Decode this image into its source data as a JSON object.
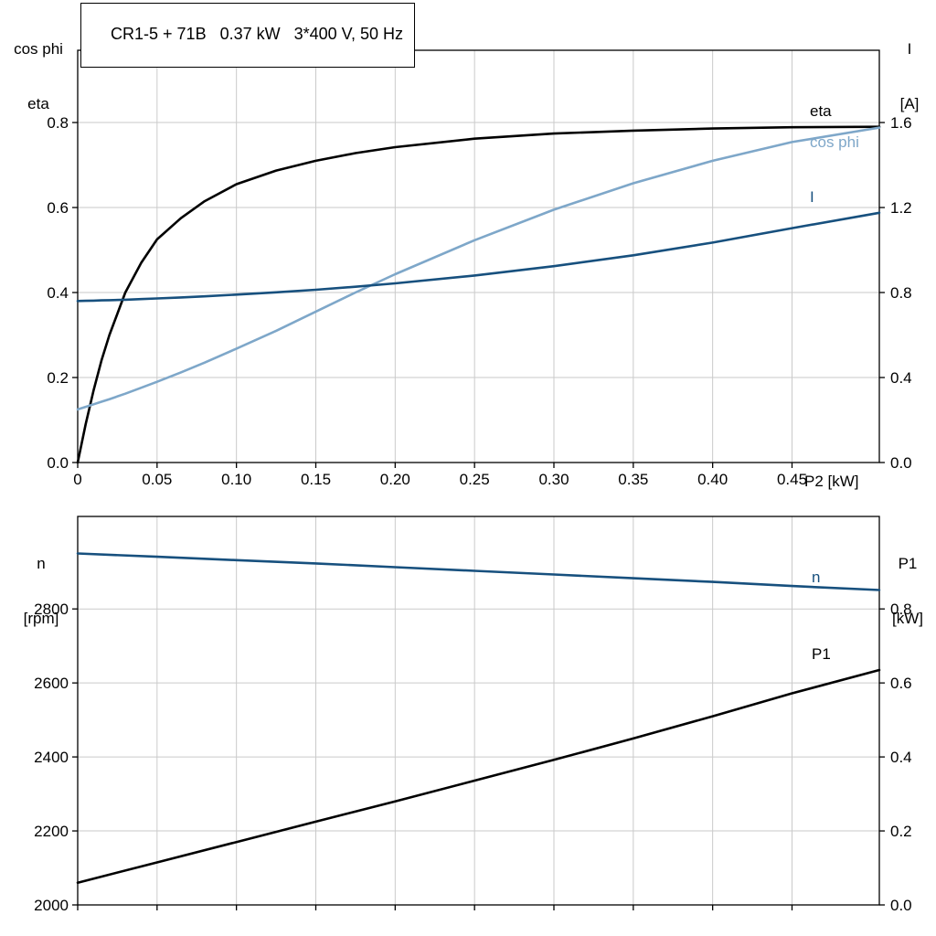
{
  "header": {
    "title": "CR1-5 + 71B   0.37 kW   3*400 V, 50 Hz"
  },
  "axes": {
    "top_left_line1": "cos phi",
    "top_left_line2": "eta",
    "top_right_line1": "I",
    "top_right_line2": "[A]",
    "top_xlabel": "P2 [kW]",
    "bottom_left_line1": "n",
    "bottom_left_line2": "[rpm]",
    "bottom_right_line1": "P1",
    "bottom_right_line2": "[kW]"
  },
  "curve_labels": {
    "eta": "eta",
    "cos_phi": "cos phi",
    "current": "I",
    "speed": "n",
    "power": "P1"
  },
  "colors": {
    "black": "#000000",
    "light_blue": "#7ea7c9",
    "dark_blue": "#17507e",
    "grid": "#cacaca"
  },
  "chart_data": [
    {
      "id": "top",
      "type": "line",
      "title": "CR1-5 + 71B   0.37 kW   3*400 V, 50 Hz",
      "xlabel": "P2 [kW]",
      "ylabel_left": "cos phi / eta",
      "ylabel_right": "I [A]",
      "grid": true,
      "xlim": [
        0,
        0.505
      ],
      "xticks": [
        0,
        0.05,
        0.1,
        0.15,
        0.2,
        0.25,
        0.3,
        0.35,
        0.4,
        0.45
      ],
      "xtick_labels": [
        "0",
        "0.05",
        "0.10",
        "0.15",
        "0.20",
        "0.25",
        "0.30",
        "0.35",
        "0.40",
        "0.45"
      ],
      "ylim_left": [
        0,
        0.97
      ],
      "yticks_left": [
        0,
        0.2,
        0.4,
        0.6,
        0.8
      ],
      "ytick_labels_left": [
        "0.0",
        "0.2",
        "0.4",
        "0.6",
        "0.8"
      ],
      "ylim_right": [
        0,
        1.94
      ],
      "yticks_right": [
        0,
        0.4,
        0.8,
        1.2,
        1.6
      ],
      "ytick_labels_right": [
        "0.0",
        "0.4",
        "0.8",
        "1.2",
        "1.6"
      ],
      "x": [
        0,
        0.005,
        0.01,
        0.015,
        0.02,
        0.03,
        0.04,
        0.05,
        0.065,
        0.08,
        0.1,
        0.125,
        0.15,
        0.175,
        0.2,
        0.25,
        0.3,
        0.35,
        0.4,
        0.45,
        0.505
      ],
      "series": [
        {
          "name": "eta",
          "axis": "left",
          "color": "#000000",
          "values": [
            0,
            0.09,
            0.17,
            0.24,
            0.3,
            0.4,
            0.47,
            0.525,
            0.575,
            0.615,
            0.655,
            0.687,
            0.71,
            0.728,
            0.742,
            0.762,
            0.774,
            0.781,
            0.786,
            0.789,
            0.79
          ]
        },
        {
          "name": "cos phi",
          "axis": "left",
          "color": "#7ea7c9",
          "values": [
            0.125,
            0.131,
            0.137,
            0.143,
            0.149,
            0.162,
            0.176,
            0.19,
            0.212,
            0.235,
            0.268,
            0.31,
            0.355,
            0.4,
            0.443,
            0.523,
            0.595,
            0.657,
            0.71,
            0.754,
            0.788
          ]
        },
        {
          "name": "I",
          "axis": "right",
          "color": "#17507e",
          "values": [
            0.76,
            0.761,
            0.762,
            0.763,
            0.764,
            0.766,
            0.769,
            0.772,
            0.777,
            0.782,
            0.79,
            0.801,
            0.813,
            0.827,
            0.843,
            0.88,
            0.924,
            0.975,
            1.035,
            1.103,
            1.175
          ]
        }
      ]
    },
    {
      "id": "bottom",
      "type": "line",
      "title": "",
      "xlabel": "",
      "ylabel_left": "n [rpm]",
      "ylabel_right": "P1 [kW]",
      "grid": true,
      "xlim": [
        0,
        0.505
      ],
      "xticks": [
        0,
        0.05,
        0.1,
        0.15,
        0.2,
        0.25,
        0.3,
        0.35,
        0.4,
        0.45
      ],
      "xtick_labels": null,
      "ylim_left": [
        2000,
        3050
      ],
      "yticks_left": [
        2000,
        2200,
        2400,
        2600,
        2800
      ],
      "ytick_labels_left": [
        "2000",
        "2200",
        "2400",
        "2600",
        "2800"
      ],
      "ylim_right": [
        0,
        1.05
      ],
      "yticks_right": [
        0,
        0.2,
        0.4,
        0.6,
        0.8
      ],
      "ytick_labels_right": [
        "0.0",
        "0.2",
        "0.4",
        "0.6",
        "0.8"
      ],
      "x": [
        0,
        0.05,
        0.1,
        0.15,
        0.2,
        0.25,
        0.3,
        0.35,
        0.4,
        0.45,
        0.505
      ],
      "series": [
        {
          "name": "n",
          "axis": "left",
          "color": "#17507e",
          "values": [
            2950,
            2941,
            2932,
            2923,
            2913,
            2903,
            2893,
            2883,
            2873,
            2862,
            2851
          ]
        },
        {
          "name": "P1",
          "axis": "right",
          "color": "#000000",
          "values": [
            0.06,
            0.115,
            0.17,
            0.225,
            0.28,
            0.336,
            0.392,
            0.45,
            0.51,
            0.572,
            0.635
          ]
        }
      ]
    }
  ]
}
